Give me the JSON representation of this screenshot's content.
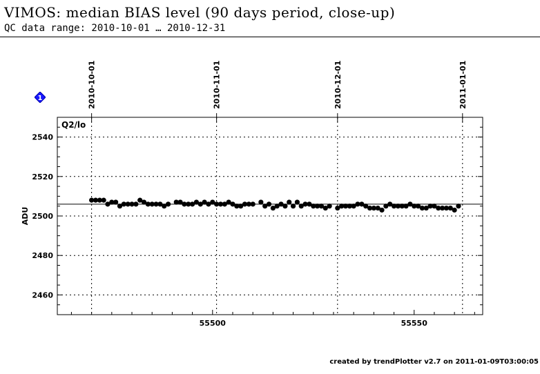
{
  "title": "VIMOS: median BIAS level (90 days period, close-up)",
  "subtitle": "QC data range: 2010-10-01 … 2010-12-31",
  "footer": "created by trendPlotter v2.7 on 2011-01-09T03:00:05",
  "badge": {
    "label": "1",
    "icon": "info-diamond-icon",
    "color": "#0000ff"
  },
  "chart_data": {
    "type": "scatter",
    "panel_label": "Q2/lo",
    "ylabel": "ADU",
    "xlim": [
      55461.5,
      55567
    ],
    "ylim": [
      2450,
      2550
    ],
    "yticks": [
      2460,
      2480,
      2500,
      2520,
      2540
    ],
    "xticks": [
      55500,
      55550
    ],
    "top_axis_dates": [
      {
        "label": "2010-10-01",
        "mjd": 55470
      },
      {
        "label": "2010-11-01",
        "mjd": 55501
      },
      {
        "label": "2010-12-01",
        "mjd": 55531
      },
      {
        "label": "2011-01-01",
        "mjd": 55562
      }
    ],
    "reference_line": 2506,
    "grid": "dotted",
    "series": [
      {
        "color": "#000000",
        "points": [
          [
            55470,
            2508
          ],
          [
            55471,
            2508
          ],
          [
            55472,
            2508
          ],
          [
            55473,
            2508
          ],
          [
            55474,
            2506
          ],
          [
            55475,
            2507
          ],
          [
            55476,
            2507
          ],
          [
            55477,
            2505
          ],
          [
            55478,
            2506
          ],
          [
            55479,
            2506
          ],
          [
            55480,
            2506
          ],
          [
            55481,
            2506
          ],
          [
            55482,
            2508
          ],
          [
            55483,
            2507
          ],
          [
            55484,
            2506
          ],
          [
            55485,
            2506
          ],
          [
            55486,
            2506
          ],
          [
            55487,
            2506
          ],
          [
            55488,
            2505
          ],
          [
            55489,
            2506
          ],
          [
            55491,
            2507
          ],
          [
            55492,
            2507
          ],
          [
            55493,
            2506
          ],
          [
            55494,
            2506
          ],
          [
            55495,
            2506
          ],
          [
            55496,
            2507
          ],
          [
            55497,
            2506
          ],
          [
            55498,
            2507
          ],
          [
            55499,
            2506
          ],
          [
            55500,
            2507
          ],
          [
            55501,
            2506
          ],
          [
            55502,
            2506
          ],
          [
            55503,
            2506
          ],
          [
            55504,
            2507
          ],
          [
            55505,
            2506
          ],
          [
            55506,
            2505
          ],
          [
            55507,
            2505
          ],
          [
            55508,
            2506
          ],
          [
            55509,
            2506
          ],
          [
            55510,
            2506
          ],
          [
            55512,
            2507
          ],
          [
            55513,
            2505
          ],
          [
            55514,
            2506
          ],
          [
            55515,
            2504
          ],
          [
            55516,
            2505
          ],
          [
            55517,
            2506
          ],
          [
            55518,
            2505
          ],
          [
            55519,
            2507
          ],
          [
            55520,
            2505
          ],
          [
            55521,
            2507
          ],
          [
            55522,
            2505
          ],
          [
            55523,
            2506
          ],
          [
            55524,
            2506
          ],
          [
            55525,
            2505
          ],
          [
            55526,
            2505
          ],
          [
            55527,
            2505
          ],
          [
            55528,
            2504
          ],
          [
            55529,
            2505
          ],
          [
            55531,
            2504
          ],
          [
            55532,
            2505
          ],
          [
            55533,
            2505
          ],
          [
            55534,
            2505
          ],
          [
            55535,
            2505
          ],
          [
            55536,
            2506
          ],
          [
            55537,
            2506
          ],
          [
            55538,
            2505
          ],
          [
            55539,
            2504
          ],
          [
            55540,
            2504
          ],
          [
            55541,
            2504
          ],
          [
            55542,
            2503
          ],
          [
            55543,
            2505
          ],
          [
            55544,
            2506
          ],
          [
            55545,
            2505
          ],
          [
            55546,
            2505
          ],
          [
            55547,
            2505
          ],
          [
            55548,
            2505
          ],
          [
            55549,
            2506
          ],
          [
            55550,
            2505
          ],
          [
            55551,
            2505
          ],
          [
            55552,
            2504
          ],
          [
            55553,
            2504
          ],
          [
            55554,
            2505
          ],
          [
            55555,
            2505
          ],
          [
            55556,
            2504
          ],
          [
            55557,
            2504
          ],
          [
            55558,
            2504
          ],
          [
            55559,
            2504
          ],
          [
            55560,
            2503
          ],
          [
            55561,
            2505
          ]
        ]
      }
    ]
  }
}
